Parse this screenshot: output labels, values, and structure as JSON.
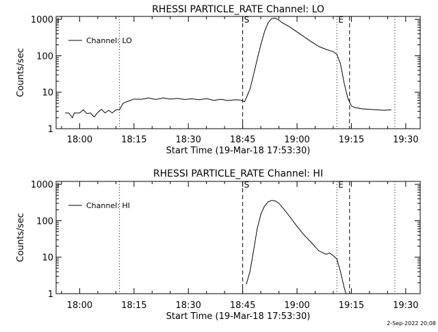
{
  "chart_data": [
    {
      "type": "line",
      "title": "RHESSI PARTICLE_RATE Channel: LO",
      "xlabel": "Start Time (19-Mar-18 17:53:30)",
      "ylabel": "Counts/sec",
      "yscale": "log",
      "ylim": [
        1,
        1200
      ],
      "xlim": [
        "17:53:30",
        "19:34:00"
      ],
      "x_ticks": [
        "18:00",
        "18:15",
        "18:30",
        "18:45",
        "19:00",
        "19:15",
        "19:30"
      ],
      "y_ticks": [
        "1",
        "10",
        "100",
        "1000"
      ],
      "legend": {
        "position": "top-left",
        "entries": [
          "Channel: LO"
        ]
      },
      "markers": [
        {
          "label": "S",
          "time": "18:45:00",
          "style": "dashed"
        },
        {
          "label": "E",
          "time": "19:11:00",
          "style": "dotted"
        }
      ],
      "extra_lines": [
        {
          "time": "18:11:00",
          "style": "dotted"
        },
        {
          "time": "19:14:30",
          "style": "dashed"
        },
        {
          "time": "19:27:00",
          "style": "dotted"
        }
      ],
      "series": [
        {
          "name": "Channel: LO",
          "points": [
            [
              "17:56:00",
              2.7
            ],
            [
              "17:57:00",
              2.7
            ],
            [
              "17:58:00",
              2.0
            ],
            [
              "17:58:30",
              2.7
            ],
            [
              "18:00:00",
              2.7
            ],
            [
              "18:01:00",
              3.3
            ],
            [
              "18:02:00",
              2.6
            ],
            [
              "18:03:00",
              2.7
            ],
            [
              "18:04:00",
              2.1
            ],
            [
              "18:05:00",
              2.8
            ],
            [
              "18:06:00",
              3.4
            ],
            [
              "18:07:00",
              2.7
            ],
            [
              "18:08:00",
              3.2
            ],
            [
              "18:09:00",
              2.7
            ],
            [
              "18:10:00",
              3.3
            ],
            [
              "18:11:00",
              3.3
            ],
            [
              "18:12:00",
              5.0
            ],
            [
              "18:13:00",
              5.5
            ],
            [
              "18:14:00",
              6.0
            ],
            [
              "18:15:00",
              6.5
            ],
            [
              "18:17:00",
              6.4
            ],
            [
              "18:19:00",
              7.0
            ],
            [
              "18:21:00",
              6.3
            ],
            [
              "18:23:00",
              7.0
            ],
            [
              "18:25:00",
              6.5
            ],
            [
              "18:27:00",
              6.8
            ],
            [
              "18:29:00",
              6.3
            ],
            [
              "18:31:00",
              6.6
            ],
            [
              "18:33:00",
              6.2
            ],
            [
              "18:35:00",
              6.7
            ],
            [
              "18:37:00",
              6.0
            ],
            [
              "18:39:00",
              6.4
            ],
            [
              "18:41:00",
              5.9
            ],
            [
              "18:43:00",
              6.2
            ],
            [
              "18:44:30",
              6.1
            ],
            [
              "18:45:30",
              5.5
            ],
            [
              "18:46:00",
              7.0
            ],
            [
              "18:47:00",
              12
            ],
            [
              "18:48:00",
              30
            ],
            [
              "18:49:00",
              80
            ],
            [
              "18:50:00",
              200
            ],
            [
              "18:51:00",
              450
            ],
            [
              "18:52:00",
              800
            ],
            [
              "18:53:00",
              1050
            ],
            [
              "18:54:00",
              1080
            ],
            [
              "18:55:00",
              950
            ],
            [
              "18:56:00",
              800
            ],
            [
              "18:58:00",
              620
            ],
            [
              "19:00:00",
              450
            ],
            [
              "19:02:00",
              330
            ],
            [
              "19:04:00",
              240
            ],
            [
              "19:06:00",
              180
            ],
            [
              "19:08:00",
              150
            ],
            [
              "19:10:00",
              130
            ],
            [
              "19:11:00",
              110
            ],
            [
              "19:12:00",
              60
            ],
            [
              "19:13:00",
              18
            ],
            [
              "19:14:00",
              7
            ],
            [
              "19:15:00",
              4.2
            ],
            [
              "19:16:00",
              3.8
            ],
            [
              "19:18:00",
              3.5
            ],
            [
              "19:20:00",
              3.4
            ],
            [
              "19:22:00",
              3.3
            ],
            [
              "19:24:00",
              3.2
            ],
            [
              "19:26:00",
              3.3
            ]
          ]
        }
      ]
    },
    {
      "type": "line",
      "title": "RHESSI PARTICLE_RATE Channel: HI",
      "xlabel": "Start Time (19-Mar-18 17:53:30)",
      "ylabel": "Counts/sec",
      "yscale": "log",
      "ylim": [
        1,
        1200
      ],
      "xlim": [
        "17:53:30",
        "19:34:00"
      ],
      "x_ticks": [
        "18:00",
        "18:15",
        "18:30",
        "18:45",
        "19:00",
        "19:15",
        "19:30"
      ],
      "y_ticks": [
        "1",
        "10",
        "100",
        "1000"
      ],
      "legend": {
        "position": "top-left",
        "entries": [
          "Channel: HI"
        ]
      },
      "markers": [
        {
          "label": "S",
          "time": "18:45:00",
          "style": "dashed"
        },
        {
          "label": "E",
          "time": "19:11:00",
          "style": "dotted"
        }
      ],
      "extra_lines": [
        {
          "time": "18:11:00",
          "style": "dotted"
        },
        {
          "time": "19:14:30",
          "style": "dashed"
        },
        {
          "time": "19:27:00",
          "style": "dotted"
        }
      ],
      "series": [
        {
          "name": "Channel: HI",
          "points": [
            [
              "18:46:00",
              1.8
            ],
            [
              "18:47:00",
              4
            ],
            [
              "18:48:00",
              15
            ],
            [
              "18:49:00",
              60
            ],
            [
              "18:50:00",
              150
            ],
            [
              "18:51:00",
              250
            ],
            [
              "18:52:00",
              330
            ],
            [
              "18:53:00",
              360
            ],
            [
              "18:54:00",
              350
            ],
            [
              "18:55:00",
              300
            ],
            [
              "18:56:00",
              230
            ],
            [
              "18:58:00",
              130
            ],
            [
              "19:00:00",
              70
            ],
            [
              "19:02:00",
              40
            ],
            [
              "19:04:00",
              25
            ],
            [
              "19:06:00",
              15
            ],
            [
              "19:08:00",
              12
            ],
            [
              "19:09:00",
              13
            ],
            [
              "19:10:00",
              11
            ],
            [
              "19:11:00",
              9
            ],
            [
              "19:12:00",
              4
            ],
            [
              "19:13:00",
              1.5
            ],
            [
              "19:13:30",
              1
            ]
          ]
        }
      ]
    }
  ],
  "footer": {
    "timestamp": "2-Sep-2022 20:08"
  }
}
